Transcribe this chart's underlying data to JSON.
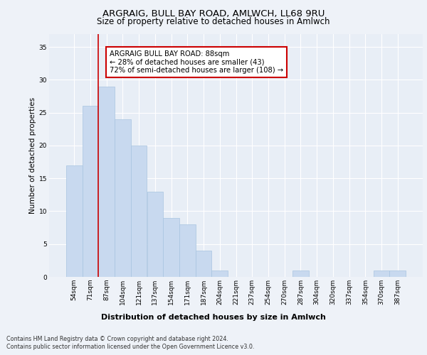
{
  "title1": "ARGRAIG, BULL BAY ROAD, AMLWCH, LL68 9RU",
  "title2": "Size of property relative to detached houses in Amlwch",
  "xlabel": "Distribution of detached houses by size in Amlwch",
  "ylabel": "Number of detached properties",
  "categories": [
    "54sqm",
    "71sqm",
    "87sqm",
    "104sqm",
    "121sqm",
    "137sqm",
    "154sqm",
    "171sqm",
    "187sqm",
    "204sqm",
    "221sqm",
    "237sqm",
    "254sqm",
    "270sqm",
    "287sqm",
    "304sqm",
    "320sqm",
    "337sqm",
    "354sqm",
    "370sqm",
    "387sqm"
  ],
  "values": [
    17,
    26,
    29,
    24,
    20,
    13,
    9,
    8,
    4,
    1,
    0,
    0,
    0,
    0,
    1,
    0,
    0,
    0,
    0,
    1,
    1
  ],
  "bar_color": "#c8d9ef",
  "bar_edge_color": "#a8c4e0",
  "reference_line_color": "#cc0000",
  "annotation_text": "ARGRAIG BULL BAY ROAD: 88sqm\n← 28% of detached houses are smaller (43)\n72% of semi-detached houses are larger (108) →",
  "annotation_box_color": "white",
  "annotation_box_edge_color": "#cc0000",
  "ylim": [
    0,
    37
  ],
  "yticks": [
    0,
    5,
    10,
    15,
    20,
    25,
    30,
    35
  ],
  "footer1": "Contains HM Land Registry data © Crown copyright and database right 2024.",
  "footer2": "Contains public sector information licensed under the Open Government Licence v3.0.",
  "bg_color": "#eef2f8",
  "plot_bg_color": "#e8eef6"
}
